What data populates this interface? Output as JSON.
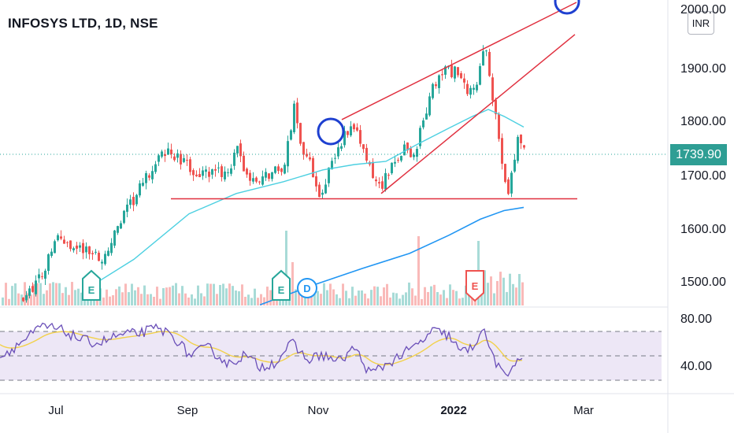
{
  "symbol_title": "INFOSYS LTD, 1D, NSE",
  "currency_button": "INR",
  "last_price": "1739.90",
  "colors": {
    "up": "#26a69a",
    "down": "#ef5350",
    "sma_fast": "#4dd0e1",
    "sma_slow": "#2196f3",
    "channel": "#e0303f",
    "marker_circle": "#1e40d0",
    "rsi": "#6a4fb8",
    "rsi_ma": "#f2d14a",
    "rsi_band": "#ede7f6"
  },
  "price_axis": {
    "labels": [
      "2000.00",
      "1900.00",
      "1800.00",
      "1700.00",
      "1600.00",
      "1500.00"
    ]
  },
  "rsi_axis": {
    "labels": [
      "80.00",
      "40.00"
    ]
  },
  "time_axis": {
    "labels": [
      "Jul",
      "Sep",
      "Nov",
      "2022",
      "Mar"
    ]
  },
  "event_labels": {
    "earnings": "E",
    "dividend": "D"
  },
  "chart_data": {
    "type": "candlestick",
    "interval": "1D",
    "exchange": "NSE",
    "currency": "INR",
    "price_range": [
      1460,
      2030
    ],
    "last_close": 1739.9,
    "support_level": 1658,
    "channel": {
      "lower": [
        [
          "Nov",
          1668
        ],
        [
          "Mar",
          1965
        ]
      ],
      "upper": [
        [
          "Nov",
          1800
        ],
        [
          "Mar",
          2025
        ]
      ]
    },
    "events": [
      {
        "type": "earnings",
        "label": "E",
        "month": "Jul",
        "direction": "up"
      },
      {
        "type": "earnings",
        "label": "E",
        "month": "Oct",
        "direction": "up"
      },
      {
        "type": "dividend",
        "label": "D",
        "month": "Oct"
      },
      {
        "type": "earnings",
        "label": "E",
        "month": "Jan",
        "direction": "down"
      }
    ],
    "rsi": {
      "levels": [
        70,
        50,
        30
      ],
      "range": [
        24,
        82
      ]
    }
  }
}
